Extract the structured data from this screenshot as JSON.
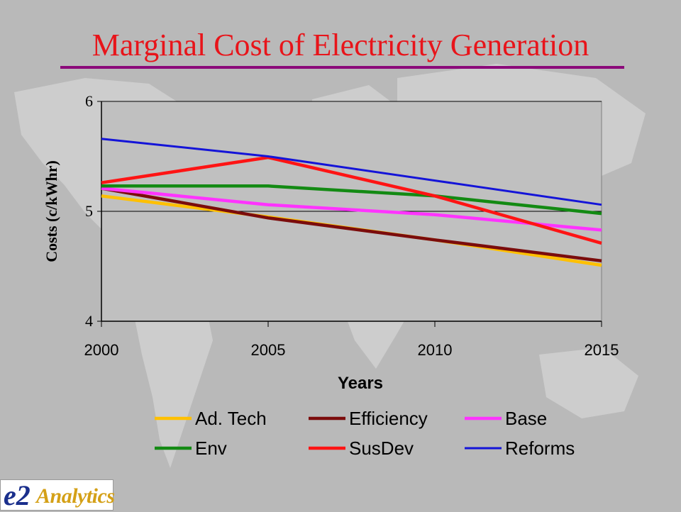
{
  "slide": {
    "title": "Marginal Cost of Electricity Generation",
    "colors": {
      "title": "#e8141a",
      "rule": "#8b0a7a",
      "background": "#b9b9b9",
      "plot_bg": "#c0c0c0"
    }
  },
  "chart_data": {
    "type": "line",
    "title": "",
    "xlabel": "Years",
    "ylabel": "Costs (c/kWhr)",
    "x": [
      2000,
      2005,
      2010,
      2015
    ],
    "xlim": [
      2000,
      2015
    ],
    "ylim": [
      4,
      6
    ],
    "yticks": [
      4,
      5,
      6
    ],
    "grid": "horizontal major lines",
    "legend_position": "bottom",
    "series": [
      {
        "name": "Ad. Tech",
        "color": "#ffc000",
        "values": [
          5.14,
          4.95,
          4.74,
          4.51
        ]
      },
      {
        "name": "Efficiency",
        "color": "#7b0c0c",
        "values": [
          5.21,
          4.94,
          4.74,
          4.55
        ]
      },
      {
        "name": "Base",
        "color": "#ff33ff",
        "values": [
          5.21,
          5.06,
          4.97,
          4.83
        ]
      },
      {
        "name": "Env",
        "color": "#138a13",
        "values": [
          5.23,
          5.23,
          5.14,
          4.98
        ]
      },
      {
        "name": "SusDev",
        "color": "#ff1414",
        "values": [
          5.26,
          5.49,
          5.14,
          4.71
        ]
      },
      {
        "name": "Reforms",
        "color": "#1414d8",
        "values": [
          5.66,
          5.5,
          5.28,
          5.06
        ]
      }
    ]
  },
  "logo": {
    "mark": "e2",
    "name": "Analytics"
  }
}
